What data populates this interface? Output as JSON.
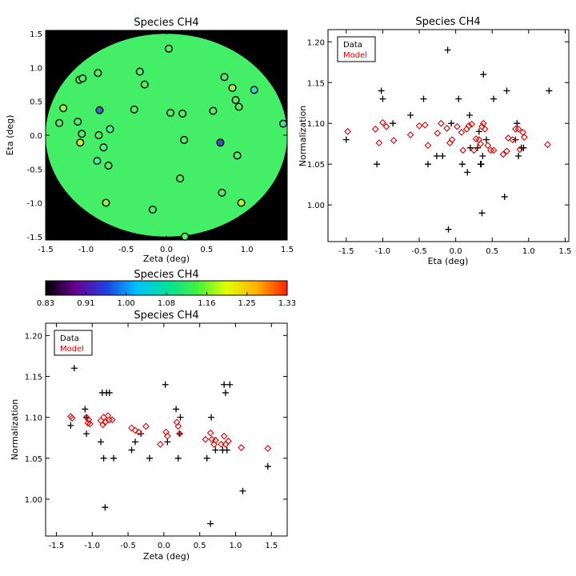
{
  "chart_data": [
    {
      "id": "map",
      "type": "scatter",
      "title": "Species CH4",
      "xlabel": "Zeta (deg)",
      "ylabel": "Eta (deg)",
      "xlim": [
        -1.5,
        1.5
      ],
      "ylim": [
        -1.55,
        1.55
      ],
      "xticks": [
        -1.5,
        -1.0,
        -0.5,
        0.0,
        0.5,
        1.0,
        1.5
      ],
      "xtick_labels": [
        "-1.5",
        "-1.0",
        "-0.5",
        "0.0",
        "0.5",
        "1.0",
        "1.5"
      ],
      "yticks": [
        -1.5,
        -1.0,
        -0.5,
        0.0,
        0.5,
        1.0,
        1.5
      ],
      "ytick_labels": [
        "-1.5",
        "-1.0",
        "-0.5",
        "0.0",
        "0.5",
        "1.0",
        "1.5"
      ],
      "background": "#000000",
      "field_color": "#44ee66",
      "point_color": "#55ee66",
      "highlighted_points": [
        {
          "zeta": -0.83,
          "eta": 0.37,
          "color": "#2f6fd0"
        },
        {
          "zeta": 0.67,
          "eta": -0.11,
          "color": "#2f56c8"
        },
        {
          "zeta": -1.07,
          "eta": -0.11,
          "color": "#ccee33"
        },
        {
          "zeta": -1.28,
          "eta": 0.4,
          "color": "#aaee44"
        },
        {
          "zeta": 0.82,
          "eta": 0.7,
          "color": "#aaee44"
        },
        {
          "zeta": 0.93,
          "eta": -1.0,
          "color": "#bbee33"
        },
        {
          "zeta": -0.75,
          "eta": -1.0,
          "color": "#99ee44"
        },
        {
          "zeta": 1.09,
          "eta": 0.67,
          "color": "#33ddcc"
        },
        {
          "zeta": 1.45,
          "eta": 0.17,
          "color": "#44ddaa"
        },
        {
          "zeta": -0.7,
          "eta": 0.09,
          "color": "#44eeaa"
        },
        {
          "zeta": -0.86,
          "eta": -0.38,
          "color": "#44eeaa"
        },
        {
          "zeta": -0.78,
          "eta": -0.18,
          "color": "#55ee99"
        }
      ],
      "points": [
        {
          "zeta": 0.03,
          "eta": 1.28
        },
        {
          "zeta": -0.33,
          "eta": 0.94
        },
        {
          "zeta": -0.27,
          "eta": 0.75
        },
        {
          "zeta": -0.85,
          "eta": 0.92
        },
        {
          "zeta": -1.08,
          "eta": 0.82
        },
        {
          "zeta": -1.04,
          "eta": 0.84
        },
        {
          "zeta": 0.72,
          "eta": 0.86
        },
        {
          "zeta": 0.86,
          "eta": 0.52
        },
        {
          "zeta": 0.9,
          "eta": 0.42
        },
        {
          "zeta": -0.4,
          "eta": 0.38
        },
        {
          "zeta": 0.58,
          "eta": 0.36
        },
        {
          "zeta": 0.05,
          "eta": 0.33
        },
        {
          "zeta": 0.2,
          "eta": 0.32
        },
        {
          "zeta": -1.33,
          "eta": 0.18
        },
        {
          "zeta": -1.1,
          "eta": 0.2
        },
        {
          "zeta": -1.05,
          "eta": 0.02
        },
        {
          "zeta": -0.84,
          "eta": 0.0
        },
        {
          "zeta": 0.22,
          "eta": -0.07
        },
        {
          "zeta": -0.72,
          "eta": -0.45
        },
        {
          "zeta": 0.88,
          "eta": -0.3
        },
        {
          "zeta": 0.17,
          "eta": -0.64
        },
        {
          "zeta": 0.69,
          "eta": -0.85
        },
        {
          "zeta": -0.17,
          "eta": -1.1
        },
        {
          "zeta": 0.23,
          "eta": -1.5
        }
      ]
    },
    {
      "id": "colorbar",
      "type": "heatmap",
      "title": "Species CH4",
      "range": [
        0.83,
        1.33
      ],
      "tick_labels": [
        "0.83",
        "0.91",
        "1.00",
        "1.08",
        "1.16",
        "1.25",
        "1.33"
      ],
      "colors": [
        "#000000",
        "#6a0090",
        "#2040e0",
        "#00c0ff",
        "#00e0a0",
        "#40f040",
        "#e0ff00",
        "#ffb000",
        "#ff2000"
      ]
    },
    {
      "id": "eta_plot",
      "type": "scatter",
      "title": "Species CH4",
      "xlabel": "Eta (deg)",
      "ylabel": "Normalization",
      "xlim": [
        -1.75,
        1.55
      ],
      "ylim": [
        0.955,
        1.215
      ],
      "xticks": [
        -1.5,
        -1.0,
        -0.5,
        0.0,
        0.5,
        1.0,
        1.5
      ],
      "xtick_labels": [
        "-1.5",
        "-1.0",
        "-0.5",
        "0.0",
        "0.5",
        "1.0",
        "1.5"
      ],
      "yticks": [
        1.0,
        1.05,
        1.1,
        1.15,
        1.2
      ],
      "ytick_labels": [
        "1.00",
        "1.05",
        "1.10",
        "1.15",
        "1.20"
      ],
      "legend_position": "top-left",
      "series": [
        {
          "name": "Data",
          "marker": "plus",
          "color": "#000000",
          "x": [
            -1.5,
            -1.08,
            -1.02,
            -1.0,
            -0.86,
            -0.62,
            -0.44,
            -0.38,
            -0.26,
            -0.18,
            -0.11,
            -0.1,
            -0.06,
            0.04,
            0.09,
            0.16,
            0.19,
            0.2,
            0.3,
            0.32,
            0.34,
            0.35,
            0.36,
            0.37,
            0.38,
            0.42,
            0.52,
            0.67,
            0.7,
            0.82,
            0.84,
            0.86,
            0.9,
            0.93,
            1.28
          ],
          "y": [
            1.08,
            1.05,
            1.14,
            1.13,
            1.1,
            1.11,
            1.13,
            1.05,
            1.06,
            1.06,
            1.19,
            0.97,
            1.1,
            1.13,
            1.05,
            1.04,
            1.11,
            1.07,
            1.07,
            1.09,
            1.05,
            1.05,
            0.99,
            1.06,
            1.16,
            1.08,
            1.13,
            1.01,
            1.14,
            1.08,
            1.1,
            1.06,
            1.07,
            1.07,
            1.14
          ]
        },
        {
          "name": "Model",
          "marker": "diamond",
          "color": "#dd0000",
          "x": [
            -1.48,
            -1.1,
            -1.05,
            -1.0,
            -0.95,
            -0.85,
            -0.62,
            -0.5,
            -0.42,
            -0.38,
            -0.25,
            -0.2,
            -0.12,
            -0.08,
            -0.05,
            0.02,
            0.08,
            0.1,
            0.15,
            0.18,
            0.22,
            0.25,
            0.28,
            0.32,
            0.34,
            0.36,
            0.38,
            0.4,
            0.44,
            0.48,
            0.52,
            0.65,
            0.7,
            0.72,
            0.78,
            0.82,
            0.86,
            0.88,
            0.92,
            0.94,
            1.26
          ],
          "y": [
            1.09,
            1.093,
            1.076,
            1.101,
            1.096,
            1.079,
            1.086,
            1.097,
            1.098,
            1.073,
            1.088,
            1.1,
            1.094,
            1.076,
            1.08,
            1.096,
            1.089,
            1.067,
            1.093,
            1.097,
            1.099,
            1.067,
            1.081,
            1.08,
            1.075,
            1.096,
            1.1,
            1.093,
            1.073,
            1.067,
            1.067,
            1.062,
            1.066,
            1.082,
            1.08,
            1.093,
            1.093,
            1.068,
            1.089,
            1.083,
            1.074
          ]
        }
      ]
    },
    {
      "id": "zeta_plot",
      "type": "scatter",
      "title": "Species CH4",
      "xlabel": "Zeta (deg)",
      "ylabel": "Normalization",
      "xlim": [
        -1.65,
        1.72
      ],
      "ylim": [
        0.955,
        1.215
      ],
      "xticks": [
        -1.5,
        -1.0,
        -0.5,
        0.0,
        0.5,
        1.0,
        1.5
      ],
      "xtick_labels": [
        "-1.5",
        "-1.0",
        "-0.5",
        "0.0",
        "0.5",
        "1.0",
        "1.5"
      ],
      "yticks": [
        1.0,
        1.05,
        1.1,
        1.15,
        1.2
      ],
      "ytick_labels": [
        "1.00",
        "1.05",
        "1.10",
        "1.15",
        "1.20"
      ],
      "legend_position": "top-left",
      "series": [
        {
          "name": "Data",
          "marker": "plus",
          "color": "#000000",
          "x": [
            -1.3,
            -1.25,
            -1.1,
            -1.08,
            -1.08,
            -0.88,
            -0.86,
            -0.84,
            -0.82,
            -0.8,
            -0.76,
            -0.7,
            -0.45,
            -0.4,
            -0.32,
            -0.2,
            0.02,
            0.05,
            0.17,
            0.2,
            0.22,
            0.23,
            0.6,
            0.65,
            0.66,
            0.72,
            0.82,
            0.84,
            0.86,
            0.88,
            0.92,
            1.1,
            1.45,
            -1.05
          ],
          "y": [
            1.09,
            1.16,
            1.11,
            1.1,
            1.08,
            1.07,
            1.13,
            1.05,
            0.99,
            1.13,
            1.13,
            1.05,
            1.06,
            1.07,
            1.08,
            1.05,
            1.14,
            1.07,
            1.11,
            1.05,
            1.08,
            1.1,
            1.05,
            0.97,
            1.1,
            1.06,
            1.06,
            1.14,
            1.13,
            1.06,
            1.14,
            1.01,
            1.04,
            1.19
          ]
        },
        {
          "name": "Model",
          "marker": "diamond",
          "color": "#dd0000",
          "x": [
            -1.3,
            -1.28,
            -1.08,
            -1.06,
            -1.05,
            -1.03,
            -0.88,
            -0.85,
            -0.84,
            -0.82,
            -0.78,
            -0.76,
            -0.72,
            -0.45,
            -0.4,
            -0.35,
            -0.25,
            -0.05,
            0.03,
            0.05,
            0.18,
            0.2,
            0.22,
            0.58,
            0.65,
            0.67,
            0.7,
            0.72,
            0.8,
            0.84,
            0.86,
            0.9,
            1.08,
            1.45
          ],
          "y": [
            1.101,
            1.099,
            1.1,
            1.093,
            1.097,
            1.092,
            1.096,
            1.091,
            1.1,
            1.094,
            1.102,
            1.097,
            1.097,
            1.087,
            1.084,
            1.082,
            1.089,
            1.067,
            1.082,
            1.077,
            1.094,
            1.089,
            1.08,
            1.073,
            1.081,
            1.073,
            1.067,
            1.072,
            1.067,
            1.077,
            1.067,
            1.071,
            1.063,
            1.062
          ]
        }
      ]
    }
  ]
}
